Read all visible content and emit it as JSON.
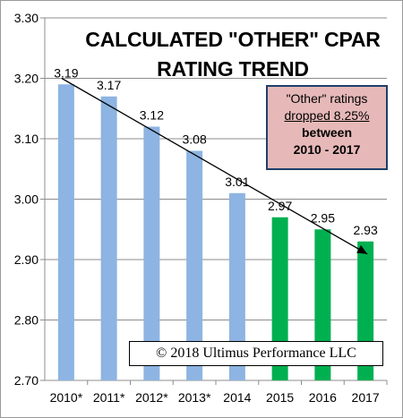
{
  "chart_data": {
    "type": "bar",
    "title_lines": [
      "CALCULATED \"OTHER\" CPAR",
      "RATING TREND"
    ],
    "categories": [
      "2010*",
      "2011*",
      "2012*",
      "2013*",
      "2014",
      "2015",
      "2016",
      "2017"
    ],
    "values": [
      3.19,
      3.17,
      3.12,
      3.08,
      3.01,
      2.97,
      2.95,
      2.93
    ],
    "data_labels": [
      "3.19",
      "3.17",
      "3.12",
      "3.08",
      "3.01",
      "2.97",
      "2.95",
      "2.93"
    ],
    "bar_colors": [
      "#8db4e2",
      "#8db4e2",
      "#8db4e2",
      "#8db4e2",
      "#8db4e2",
      "#00b050",
      "#00b050",
      "#00b050"
    ],
    "ylim": [
      2.7,
      3.3
    ],
    "yticks": [
      "2.70",
      "2.80",
      "2.90",
      "3.00",
      "3.10",
      "3.20",
      "3.30"
    ],
    "grid": "horizontal",
    "legend": "none",
    "trend_arrow": {
      "from_index": 0,
      "to_index": 7,
      "from_value": 3.2,
      "to_value": 2.93
    },
    "xlabel": "",
    "ylabel": ""
  },
  "callout": {
    "line1": "\"Other\" ratings",
    "line2": "dropped 8.25%",
    "line3": "between",
    "line4": "2010 - 2017",
    "background": "#e6b9b8",
    "border": "#1f3f6b"
  },
  "copyright": "© 2018 Ultimus Performance LLC"
}
